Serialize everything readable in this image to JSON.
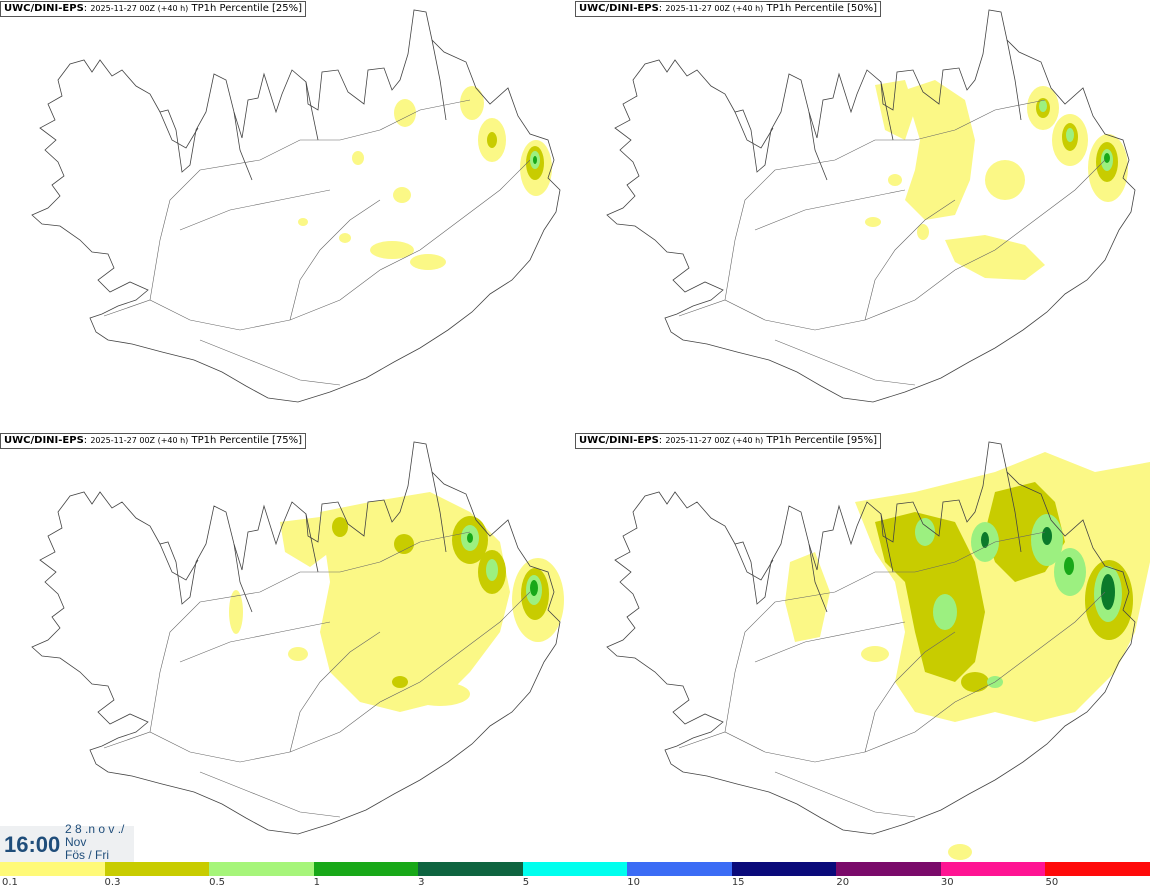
{
  "panels": [
    {
      "model": "UWC/DINI-EPS",
      "run": "2025-11-27 00Z (+40 h)",
      "field": "TP1h Percentile [25%]"
    },
    {
      "model": "UWC/DINI-EPS",
      "run": "2025-11-27 00Z (+40 h)",
      "field": "TP1h Percentile [50%]"
    },
    {
      "model": "UWC/DINI-EPS",
      "run": "2025-11-27 00Z (+40 h)",
      "field": "TP1h Percentile [75%]"
    },
    {
      "model": "UWC/DINI-EPS",
      "run": "2025-11-27 00Z (+40 h)",
      "field": "TP1h Percentile [95%]"
    }
  ],
  "valid_time": {
    "time": "16:00",
    "date_line": "2 8 .n o v ./",
    "month": "Nov",
    "weekday": "Fös / Fri"
  },
  "legend": {
    "colors": [
      "#fffa78",
      "#c8cc00",
      "#a6f57a",
      "#18a818",
      "#0e6440",
      "#00ffee",
      "#3b6cf5",
      "#0a0a7a",
      "#7a0a6a",
      "#ff1493",
      "#ff0a0a"
    ],
    "labels": [
      "0.1",
      "0.3",
      "0.5",
      "1",
      "3",
      "5",
      "10",
      "15",
      "20",
      "30",
      "50"
    ]
  },
  "colors": {
    "light": "#fbf886",
    "mid": "#c8cc00",
    "lgreen": "#9cf080",
    "green": "#18a818",
    "dgreen": "#0b7a2a",
    "coast": "#444444"
  }
}
